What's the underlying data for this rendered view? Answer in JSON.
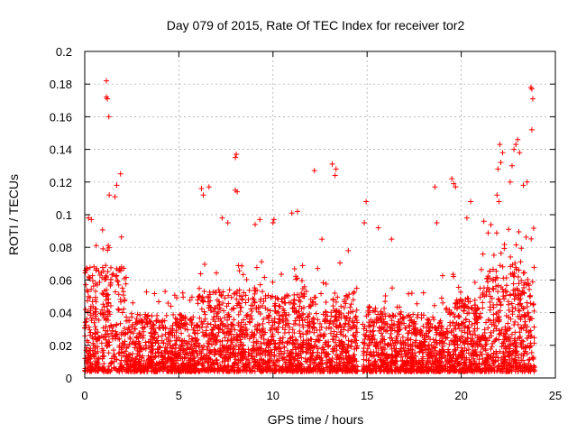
{
  "chart_data": {
    "type": "scatter",
    "title": "Day 079 of 2015, Rate Of TEC Index for receiver tor2",
    "xlabel": "GPS time / hours",
    "ylabel": "ROTI / TECUs",
    "xlim": [
      0,
      25
    ],
    "ylim": [
      0,
      0.2
    ],
    "xticks": [
      0,
      5,
      10,
      15,
      20,
      25
    ],
    "yticks": [
      0,
      0.02,
      0.04,
      0.06,
      0.08,
      0.1,
      0.12,
      0.14,
      0.16,
      0.18,
      0.2
    ],
    "xtick_labels": [
      "0",
      "5",
      "10",
      "15",
      "20",
      "25"
    ],
    "ytick_labels": [
      "0",
      "0.02",
      "0.04",
      "0.06",
      "0.08",
      "0.1",
      "0.12",
      "0.14",
      "0.16",
      "0.18",
      "0.2"
    ],
    "grid": true,
    "marker": "+",
    "color": "#ff0000",
    "series": [
      {
        "points": [
          [
            1.15,
            0.182
          ],
          [
            1.15,
            0.172
          ],
          [
            1.2,
            0.171
          ],
          [
            1.28,
            0.16
          ],
          [
            1.9,
            0.125
          ],
          [
            1.7,
            0.118
          ],
          [
            1.6,
            0.111
          ],
          [
            1.3,
            0.112
          ],
          [
            0.2,
            0.098
          ],
          [
            0.35,
            0.097
          ],
          [
            6.2,
            0.116
          ],
          [
            6.3,
            0.112
          ],
          [
            6.6,
            0.117
          ],
          [
            7.3,
            0.098
          ],
          [
            7.6,
            0.095
          ],
          [
            8.0,
            0.135
          ],
          [
            8.05,
            0.137
          ],
          [
            8.0,
            0.115
          ],
          [
            8.1,
            0.114
          ],
          [
            9.05,
            0.094
          ],
          [
            9.3,
            0.097
          ],
          [
            10.05,
            0.097
          ],
          [
            10.0,
            0.095
          ],
          [
            11.3,
            0.102
          ],
          [
            11.0,
            0.101
          ],
          [
            12.2,
            0.127
          ],
          [
            13.15,
            0.131
          ],
          [
            13.3,
            0.124
          ],
          [
            13.35,
            0.128
          ],
          [
            12.6,
            0.085
          ],
          [
            14.0,
            0.078
          ],
          [
            14.45,
            0.055
          ],
          [
            14.95,
            0.108
          ],
          [
            14.85,
            0.095
          ],
          [
            15.6,
            0.092
          ],
          [
            16.3,
            0.085
          ],
          [
            18.6,
            0.117
          ],
          [
            18.7,
            0.095
          ],
          [
            19.5,
            0.122
          ],
          [
            19.6,
            0.119
          ],
          [
            19.7,
            0.117
          ],
          [
            20.3,
            0.098
          ],
          [
            20.5,
            0.108
          ],
          [
            21.2,
            0.096
          ],
          [
            21.9,
            0.112
          ],
          [
            22.0,
            0.108
          ],
          [
            21.95,
            0.128
          ],
          [
            22.1,
            0.132
          ],
          [
            22.2,
            0.138
          ],
          [
            22.05,
            0.143
          ],
          [
            22.6,
            0.12
          ],
          [
            22.7,
            0.13
          ],
          [
            22.8,
            0.14
          ],
          [
            22.9,
            0.143
          ],
          [
            23.0,
            0.146
          ],
          [
            23.1,
            0.138
          ],
          [
            23.3,
            0.118
          ],
          [
            23.5,
            0.12
          ],
          [
            23.7,
            0.178
          ],
          [
            23.75,
            0.177
          ],
          [
            23.8,
            0.171
          ],
          [
            23.75,
            0.152
          ]
        ]
      }
    ]
  }
}
